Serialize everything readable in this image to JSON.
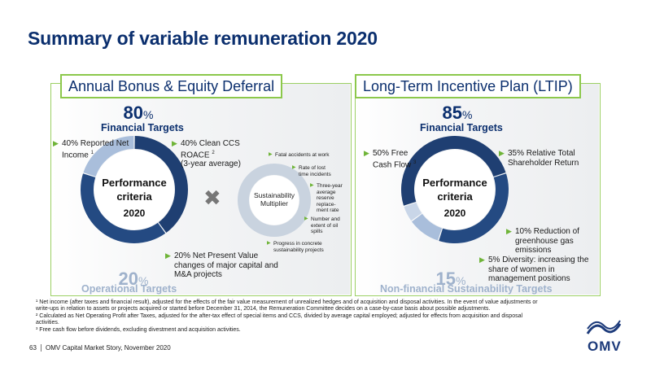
{
  "page": {
    "title": "Summary of variable remuneration 2020",
    "page_number": "63",
    "footer": "OMV Capital Market Story, November 2020",
    "logo_text": "OMV"
  },
  "bonus": {
    "tab_title": "Annual Bonus & Equity Deferral",
    "financial_pct": "80",
    "pct_sign": "%",
    "financial_label": "Financial Targets",
    "operational_pct": "20",
    "operational_label": "Operational Targets",
    "criteria_line1": "Performance",
    "criteria_line2": "criteria",
    "criteria_year": "2020",
    "item_1_line1": "40% Reported Net",
    "item_1_line2": "Income",
    "item_1_sup": "1",
    "item_2_line1": "40% Clean CCS",
    "item_2_line2": "ROACE",
    "item_2_sup": "2",
    "item_2_line3": "(3-year average)",
    "item_3_line1": "20% Net Present Value",
    "item_3_line2": "changes of major capital and",
    "item_3_line3": "M&A projects",
    "segments": [
      {
        "name": "Reported Net Income",
        "share": 40,
        "color": "#1f3f72"
      },
      {
        "name": "Clean CCS ROACE",
        "share": 40,
        "color": "#244a82"
      },
      {
        "name": "Net Present Value changes",
        "share": 20,
        "color": "#a9bedb"
      }
    ]
  },
  "multiplier": {
    "times_symbol": "✖",
    "label_line1": "Sustainability",
    "label_line2": "Multiplier",
    "items": [
      [
        "Fatal accidents at work"
      ],
      [
        "Rate of lost",
        "time incidents"
      ],
      [
        "Three-year",
        "average",
        "reserve",
        "replace-",
        "ment rate"
      ],
      [
        "Number and",
        "extent of oil",
        "spills"
      ],
      [
        "Progress in concrete",
        "sustainability projects"
      ]
    ]
  },
  "ltip": {
    "tab_title": "Long-Term Incentive Plan (LTIP)",
    "financial_pct": "85",
    "pct_sign": "%",
    "financial_label": "Financial Targets",
    "nonfin_pct": "15",
    "nonfin_label": "Non-financial Sustainability Targets",
    "criteria_line1": "Performance",
    "criteria_line2": "criteria",
    "criteria_year": "2020",
    "item_1_line1": "50% Free",
    "item_1_line2": "Cash Flow",
    "item_1_sup": "3",
    "item_2_line1": "35% Relative Total",
    "item_2_line2": "Shareholder Return",
    "item_3_line1": "10% Reduction of",
    "item_3_line2": "greenhouse gas",
    "item_3_line3": "emissions",
    "item_4_line1": "5% Diversity: increasing the",
    "item_4_line2": "share of women in",
    "item_4_line3": "management positions",
    "segments": [
      {
        "name": "Free Cash Flow",
        "share": 50,
        "color": "#1f3f72"
      },
      {
        "name": "Relative Total Shareholder Return",
        "share": 35,
        "color": "#244a82"
      },
      {
        "name": "Reduction of greenhouse gas emissions",
        "share": 10,
        "color": "#a9bedb"
      },
      {
        "name": "Diversity",
        "share": 5,
        "color": "#c9d6e8"
      }
    ]
  },
  "footnotes": {
    "fn1_line1": "¹ Net income (after taxes and financial result), adjusted for the effects of the fair value measurement of unrealized hedges and of acquisition and disposal activities. In the event of value adjustments or",
    "fn1_line2": "write-ups in relation to assets or projects acquired or started before December 31, 2014, the Remuneration Committee decides on a case-by-case basis about possible adjustments.",
    "fn2_line1": "² Calculated as Net Operating Profit after Taxes, adjusted for the after-tax effect of special items and CCS, divided by average capital employed; adjusted for effects from acquisition and disposal",
    "fn2_line2": "activities.",
    "fn3": "³ Free cash flow before dividends, excluding divestment and acquisition activities."
  },
  "colors": {
    "navy": "#0b2f6e",
    "green_accent": "#8cc84b",
    "light_blue": "#9fb2cc"
  }
}
